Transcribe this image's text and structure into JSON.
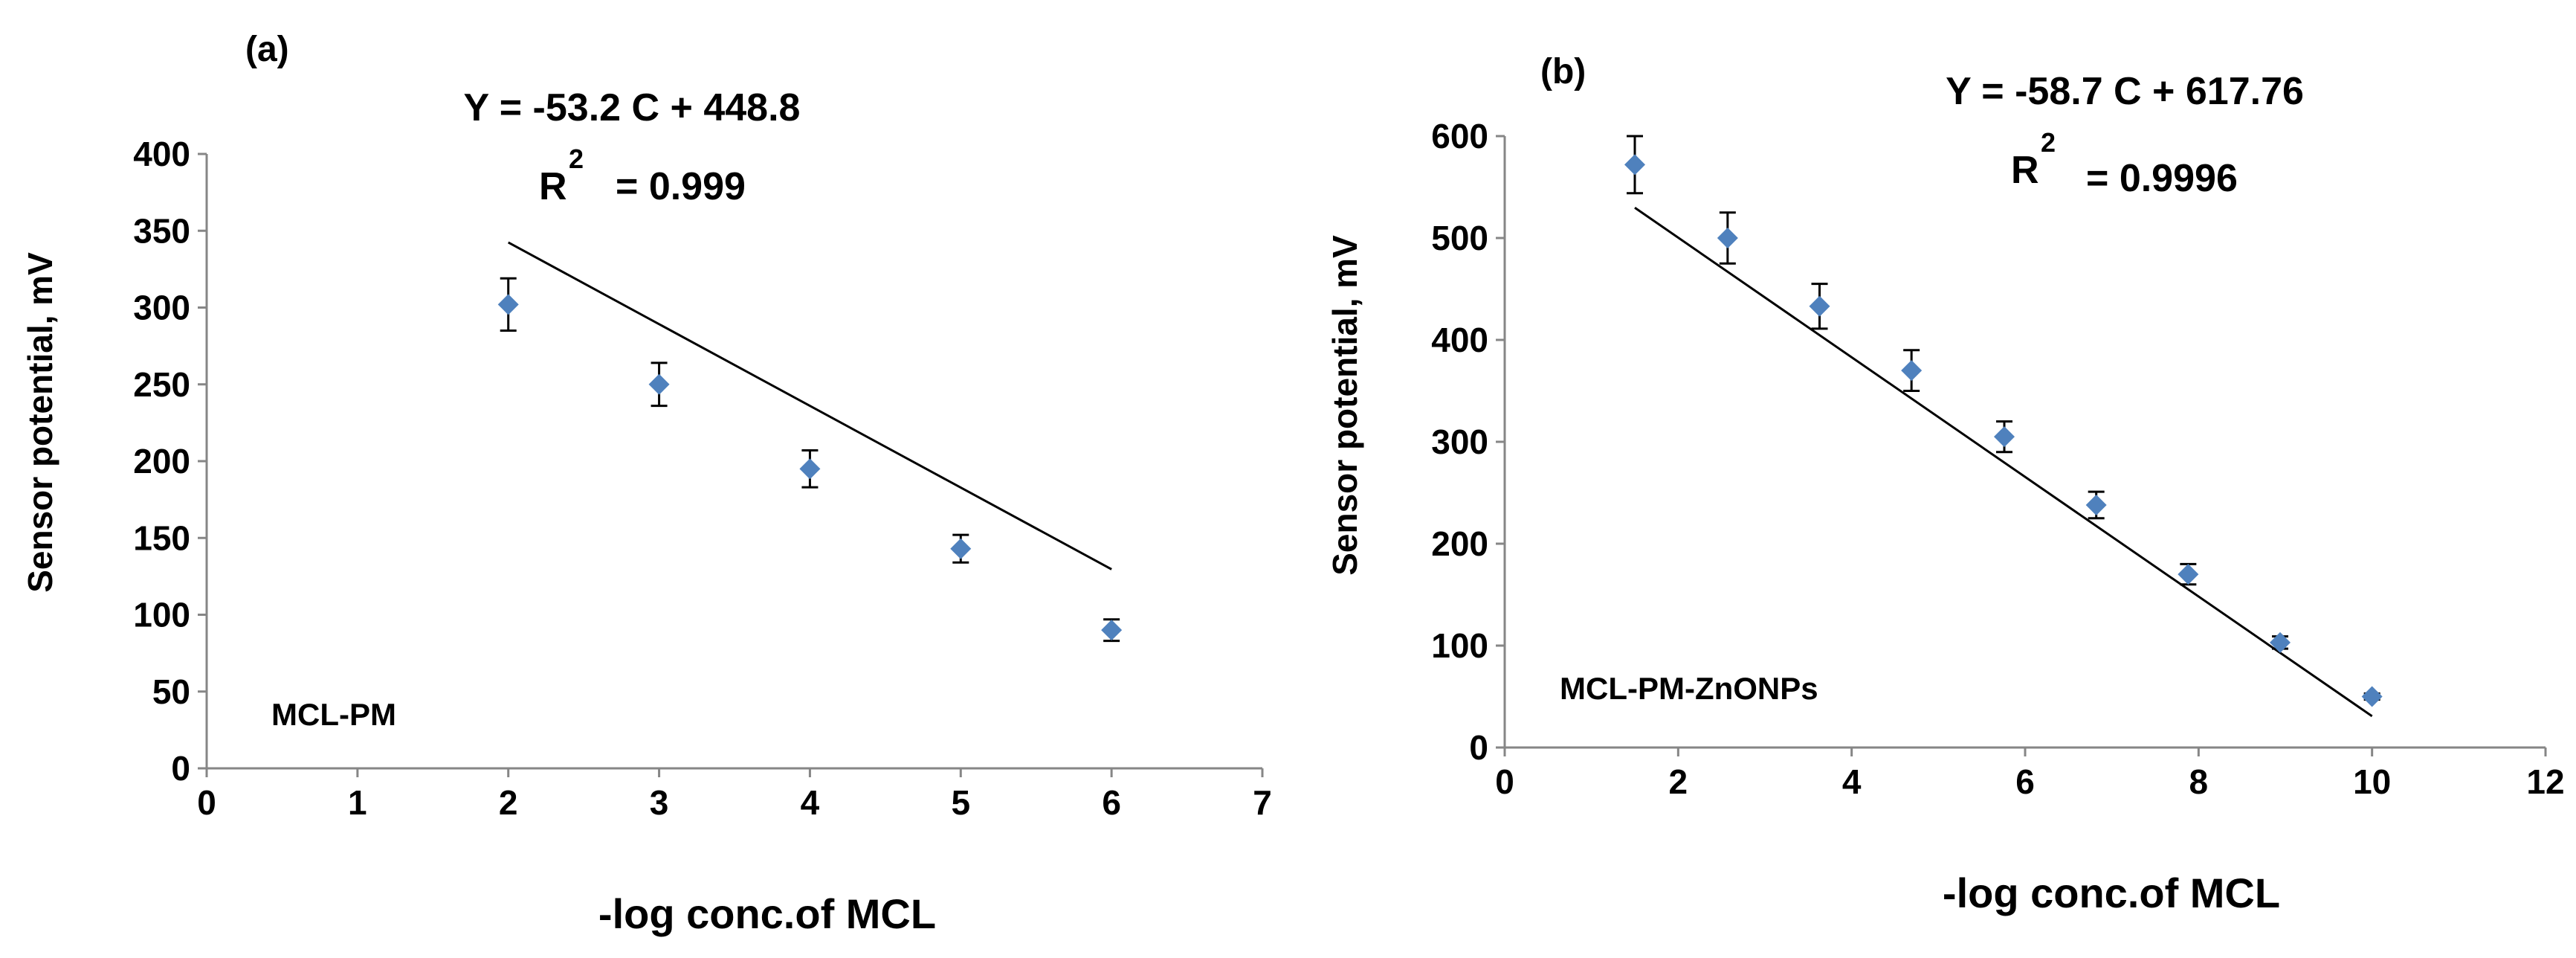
{
  "chart_data": [
    {
      "type": "scatter",
      "panel_label": "(a)",
      "equation": "Y = -53.2 C + 448.8",
      "r2_label": "R",
      "r2_sup": "2",
      "r2_value": "= 0.999",
      "series_label": "MCL-PM",
      "xlabel": "-log conc.of MCL",
      "ylabel": "Sensor potential, mV",
      "xlim": [
        0,
        7
      ],
      "ylim": [
        0,
        400
      ],
      "xticks": [
        0,
        1,
        2,
        3,
        4,
        5,
        6,
        7
      ],
      "yticks": [
        0,
        50,
        100,
        150,
        200,
        250,
        300,
        350,
        400
      ],
      "x": [
        2,
        3,
        4,
        5,
        6
      ],
      "y": [
        302,
        250,
        195,
        143,
        90
      ],
      "yerr": [
        17,
        14,
        12,
        9,
        7
      ],
      "fit": {
        "slope": -53.2,
        "intercept": 448.8,
        "x_range": [
          2,
          6
        ]
      },
      "marker_color": "#4F81BD",
      "grid": false
    },
    {
      "type": "scatter",
      "panel_label": "(b)",
      "equation": "Y = -58.7 C + 617.76",
      "r2_label": "R",
      "r2_sup": "2",
      "r2_value": "= 0.9996",
      "series_label": "MCL-PM-ZnONPs",
      "xlabel": "-log conc.of MCL",
      "ylabel": "Sensor potential, mV",
      "xlim": [
        0,
        12
      ],
      "ylim": [
        0,
        600
      ],
      "xticks": [
        0,
        2,
        4,
        6,
        8,
        10,
        12
      ],
      "yticks": [
        0,
        100,
        200,
        300,
        400,
        500,
        600
      ],
      "x": [
        1.5,
        2.57,
        3.63,
        4.69,
        5.76,
        6.82,
        7.88,
        8.94,
        10.0
      ],
      "y": [
        572,
        500,
        433,
        370,
        305,
        238,
        170,
        103,
        50
      ],
      "yerr": [
        28,
        25,
        22,
        20,
        15,
        13,
        10,
        6,
        3
      ],
      "fit": {
        "slope": -58.7,
        "intercept": 617.76,
        "x_range": [
          1.5,
          10.0
        ]
      },
      "marker_color": "#4F81BD",
      "grid": false
    }
  ]
}
